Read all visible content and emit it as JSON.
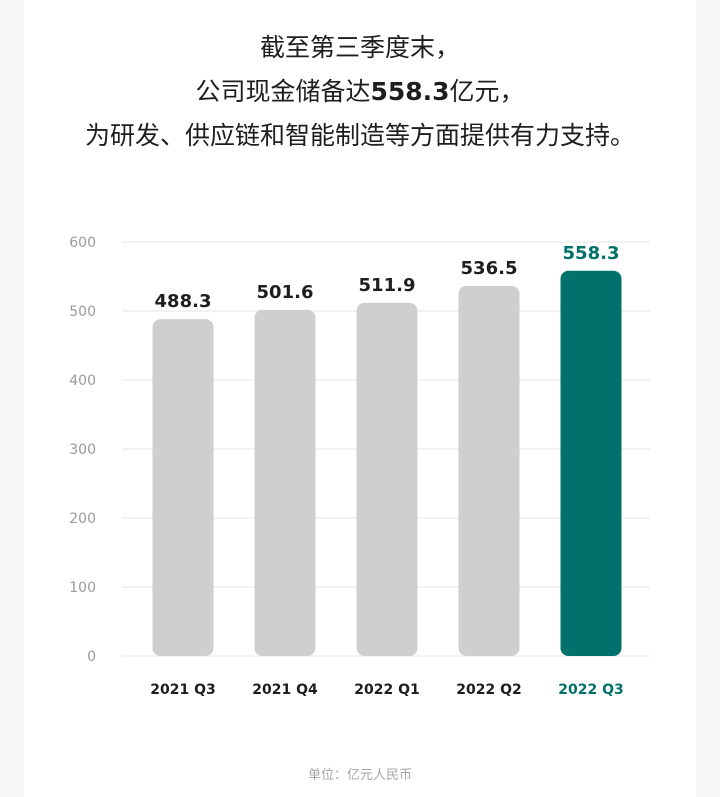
{
  "headline": {
    "line1": "截至第三季度末，",
    "line2_before": "公司现金储备达",
    "line2_highlight": "558.3",
    "line2_after": "亿元，",
    "line3": "为研发、供应链和智能制造等方面提供有力支持。"
  },
  "chart_data": {
    "type": "bar",
    "categories": [
      "2021 Q3",
      "2021 Q4",
      "2022 Q1",
      "2022 Q2",
      "2022 Q3"
    ],
    "values": [
      488.3,
      501.6,
      511.9,
      536.5,
      558.3
    ],
    "value_labels": [
      "488.3",
      "501.6",
      "511.9",
      "536.5",
      "558.3"
    ],
    "ylim": [
      0,
      600
    ],
    "y_ticks": [
      0,
      100,
      200,
      300,
      400,
      500,
      600
    ],
    "y_tick_labels": [
      "0",
      "100",
      "200",
      "300",
      "400",
      "500",
      "600"
    ],
    "highlight_index": 4,
    "grid": true,
    "colors": {
      "bar": "#cfcfcf",
      "highlight": "#00726b",
      "label": "#1e1e1e",
      "tick": "#9a9a9a",
      "grid": "#e6e6e6"
    }
  },
  "footer": {
    "unit": "单位：亿元人民币"
  }
}
